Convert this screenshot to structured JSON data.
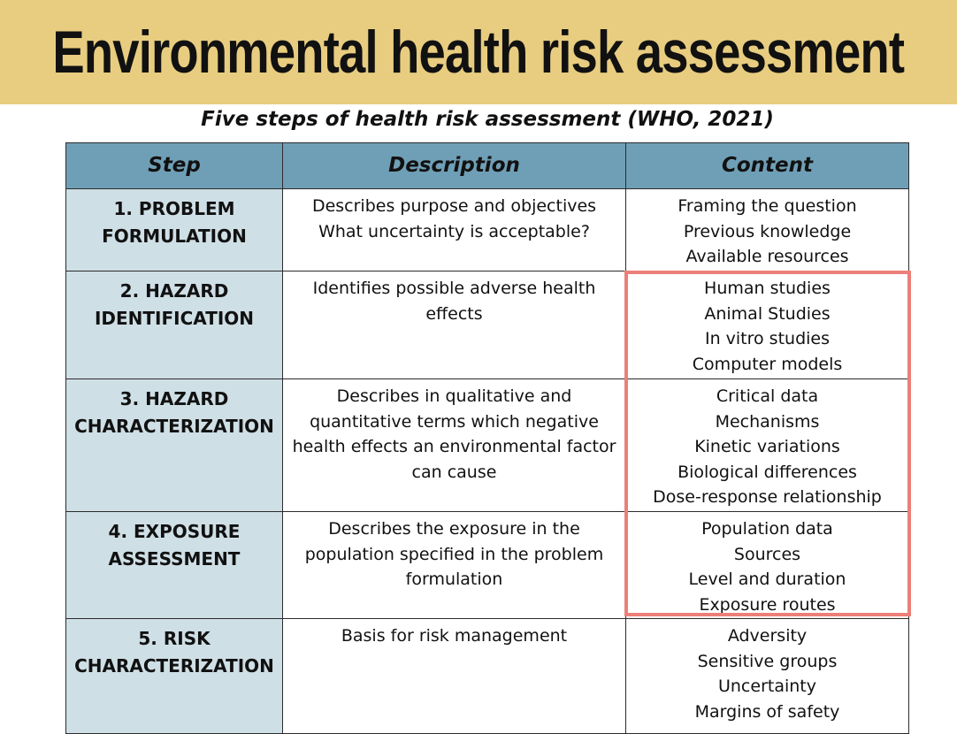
{
  "header": {
    "title": "Environmental health risk assessment",
    "subtitle": "Five steps of health risk assessment (WHO, 2021)"
  },
  "table": {
    "columns": [
      "Step",
      "Description",
      "Content"
    ],
    "rows": [
      {
        "step": [
          "1. PROBLEM",
          "FORMULATION"
        ],
        "description": [
          "Describes purpose and objectives",
          "What uncertainty is acceptable?"
        ],
        "content": [
          "Framing the question",
          "Previous knowledge",
          "Available resources"
        ]
      },
      {
        "step": [
          "2. HAZARD",
          "IDENTIFICATION"
        ],
        "description": [
          "Identifies possible adverse health",
          "effects"
        ],
        "content": [
          "Human studies",
          "Animal Studies",
          "In vitro studies",
          "Computer models"
        ]
      },
      {
        "step": [
          "3. HAZARD",
          "CHARACTERIZATION"
        ],
        "description": [
          "Describes in qualitative and",
          "quantitative terms which negative",
          "health effects an environmental factor",
          "can cause"
        ],
        "content": [
          "Critical data",
          "Mechanisms",
          "Kinetic variations",
          "Biological differences",
          "Dose-response relationship"
        ]
      },
      {
        "step": [
          "4. EXPOSURE",
          "ASSESSMENT"
        ],
        "description": [
          "Describes the exposure in the",
          "population specified in the problem",
          "formulation"
        ],
        "content": [
          "Population data",
          "Sources",
          "Level and duration",
          "Exposure routes"
        ]
      },
      {
        "step": [
          "5. RISK",
          "CHARACTERIZATION"
        ],
        "description": [
          "Basis for risk management"
        ],
        "content": [
          "Adversity",
          "Sensitive groups",
          "Uncertainty",
          "Margins of safety"
        ]
      }
    ]
  },
  "colors": {
    "banner": "#e8cd80",
    "header_row": "#6f9fb6",
    "step_column": "#cfdfe6",
    "highlight_border": "#ec7f78"
  }
}
